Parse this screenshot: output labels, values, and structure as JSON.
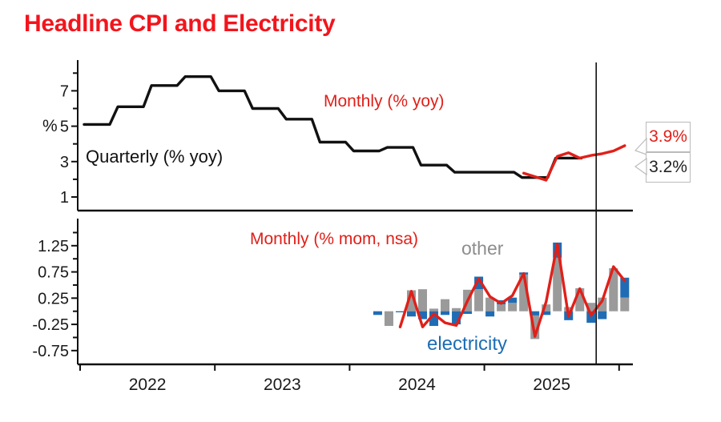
{
  "title": "Headline CPI and Electricity",
  "colors": {
    "red": "#e02019",
    "title_red": "#f2151c",
    "blue": "#1f6cb4",
    "gray": "#9a9a9a",
    "black": "#111111",
    "gray_label": "#8d8d8d",
    "blue_label": "#1b6db5",
    "callout_border": "#bbbbbb"
  },
  "top_panel": {
    "y_axis_label": "%",
    "quarterly_label": "Quarterly (% yoy)",
    "monthly_label": "Monthly (% yoy)",
    "callout_monthly": "3.9%",
    "callout_quarterly": "3.2%"
  },
  "bottom_panel": {
    "monthly_label": "Monthly (% mom, nsa)",
    "other_label": "other",
    "electricity_label": "electricity"
  },
  "x_axis": {
    "year_ticks": [
      2022,
      2023,
      2024,
      2025,
      2026
    ],
    "year_labels": [
      "2022",
      "2023",
      "2024",
      "2025"
    ],
    "marker_time": 2025.83
  },
  "chart_data": [
    {
      "panel": "top",
      "type": "line",
      "title": "Headline CPI (% yoy)",
      "ylabel": "%",
      "ylim": [
        0.2,
        8.8
      ],
      "yticks": [
        1,
        3,
        5,
        7
      ],
      "yticks_minor": [
        2,
        4,
        6,
        8
      ],
      "series": [
        {
          "name": "Quarterly (% yoy)",
          "style": "step",
          "color": "black",
          "quarters": [
            "2022-Q1",
            "2022-Q2",
            "2022-Q3",
            "2022-Q4",
            "2023-Q1",
            "2023-Q2",
            "2023-Q3",
            "2023-Q4",
            "2024-Q1",
            "2024-Q2",
            "2024-Q3",
            "2024-Q4",
            "2025-Q1",
            "2025-Q2",
            "2025-Q3"
          ],
          "values": [
            5.1,
            6.1,
            7.3,
            7.8,
            7.0,
            6.0,
            5.4,
            4.1,
            3.6,
            3.8,
            2.8,
            2.4,
            2.4,
            2.1,
            3.2
          ],
          "end_value_label": "3.2%"
        },
        {
          "name": "Monthly (% yoy)",
          "style": "line",
          "color": "red",
          "months": [
            "2025-04",
            "2025-05",
            "2025-06",
            "2025-07",
            "2025-08",
            "2025-09",
            "2025-10",
            "2025-11",
            "2025-12",
            "2026-01"
          ],
          "values": [
            2.35,
            2.15,
            1.95,
            3.3,
            3.5,
            3.2,
            3.35,
            3.45,
            3.6,
            3.9
          ],
          "end_value_label": "3.9%"
        }
      ]
    },
    {
      "panel": "bottom",
      "type": "bar",
      "stacked": true,
      "title": "Monthly CPI contributions (% mom, nsa)",
      "ylim": [
        -1.05,
        1.75
      ],
      "yticks": [
        1.25,
        0.75,
        0.25,
        -0.25,
        -0.75
      ],
      "yticks_minor": [
        1.5,
        1.0,
        0.5,
        0.0,
        -0.5
      ],
      "categories": [
        "2024-03",
        "2024-04",
        "2024-05",
        "2024-06",
        "2024-07",
        "2024-08",
        "2024-09",
        "2024-10",
        "2024-11",
        "2024-12",
        "2025-01",
        "2025-02",
        "2025-03",
        "2025-04",
        "2025-05",
        "2025-06",
        "2025-07",
        "2025-08",
        "2025-09",
        "2025-10",
        "2025-11",
        "2025-12",
        "2026-01"
      ],
      "series": [
        {
          "name": "electricity",
          "type": "bar",
          "color": "blue",
          "values": [
            -0.07,
            0.0,
            -0.02,
            -0.1,
            -0.15,
            -0.28,
            -0.07,
            -0.25,
            -0.05,
            0.24,
            -0.1,
            0.08,
            0.1,
            0.04,
            -0.08,
            -0.07,
            0.29,
            -0.17,
            0.0,
            -0.22,
            -0.15,
            0.0,
            0.38
          ]
        },
        {
          "name": "other",
          "type": "bar",
          "color": "gray",
          "values": [
            0.0,
            -0.28,
            0.0,
            0.4,
            0.42,
            0.05,
            0.23,
            0.06,
            0.41,
            0.42,
            0.26,
            0.13,
            0.16,
            0.7,
            -0.45,
            0.13,
            1.02,
            0.08,
            0.44,
            0.16,
            0.26,
            0.82,
            0.26
          ]
        },
        {
          "name": "Monthly (% mom, nsa)",
          "type": "line",
          "color": "red",
          "months": [
            "2024-05",
            "2024-06",
            "2024-07",
            "2024-08",
            "2024-09",
            "2024-10",
            "2024-11",
            "2024-12",
            "2025-01",
            "2025-02",
            "2025-03",
            "2025-04",
            "2025-05",
            "2025-06",
            "2025-07",
            "2025-08",
            "2025-09",
            "2025-10",
            "2025-11",
            "2025-12",
            "2026-01"
          ],
          "values": [
            -0.3,
            0.38,
            -0.3,
            -0.05,
            -0.22,
            -0.27,
            0.2,
            0.62,
            0.28,
            0.15,
            0.3,
            0.72,
            -0.48,
            0.18,
            1.28,
            -0.1,
            0.43,
            -0.08,
            0.2,
            0.85,
            0.58
          ]
        }
      ]
    }
  ]
}
